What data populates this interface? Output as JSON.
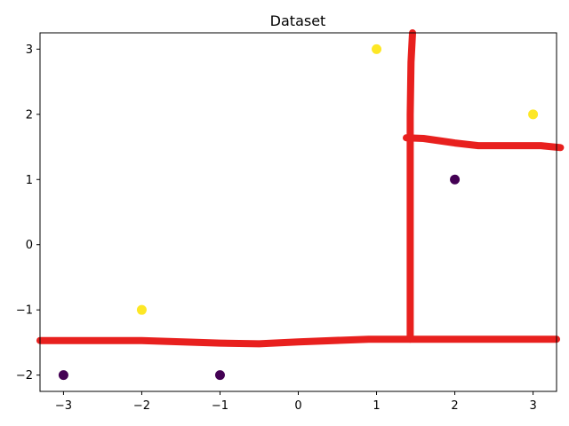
{
  "chart_data": {
    "type": "scatter",
    "title": "Dataset",
    "xlabel": "",
    "ylabel": "",
    "xlim": [
      -3.3,
      3.3
    ],
    "ylim": [
      -2.25,
      3.25
    ],
    "xticks": [
      -3,
      -2,
      -1,
      0,
      1,
      2,
      3
    ],
    "xtick_labels": [
      "−3",
      "−2",
      "−1",
      "0",
      "1",
      "2",
      "3"
    ],
    "yticks": [
      -2,
      -1,
      0,
      1,
      2,
      3
    ],
    "ytick_labels": [
      "−2",
      "−1",
      "0",
      "1",
      "2",
      "3"
    ],
    "grid": false,
    "points": [
      {
        "x": -3,
        "y": -2,
        "class": 0
      },
      {
        "x": -1,
        "y": -2,
        "class": 0
      },
      {
        "x": 2,
        "y": 1,
        "class": 0
      },
      {
        "x": -2,
        "y": -1,
        "class": 1
      },
      {
        "x": 1,
        "y": 3,
        "class": 1
      },
      {
        "x": 3,
        "y": 2,
        "class": 1
      }
    ],
    "class_colors": {
      "0": "#440154",
      "1": "#fde725"
    },
    "annotations": {
      "color": "#e8201e",
      "strokes": [
        [
          [
            -3.3,
            -1.47
          ],
          [
            -2.0,
            -1.47
          ],
          [
            -1.0,
            -1.51
          ],
          [
            -0.5,
            -1.52
          ],
          [
            0.0,
            -1.49
          ],
          [
            0.9,
            -1.45
          ],
          [
            3.3,
            -1.45
          ]
        ],
        [
          [
            1.43,
            -1.45
          ],
          [
            1.43,
            -0.9
          ],
          [
            1.43,
            0.5
          ],
          [
            1.43,
            2.0
          ],
          [
            1.44,
            2.8
          ],
          [
            1.46,
            3.25
          ]
        ],
        [
          [
            1.38,
            1.64
          ],
          [
            1.6,
            1.63
          ],
          [
            2.0,
            1.56
          ],
          [
            2.3,
            1.52
          ],
          [
            2.8,
            1.52
          ],
          [
            3.1,
            1.52
          ],
          [
            3.35,
            1.49
          ]
        ]
      ]
    }
  }
}
